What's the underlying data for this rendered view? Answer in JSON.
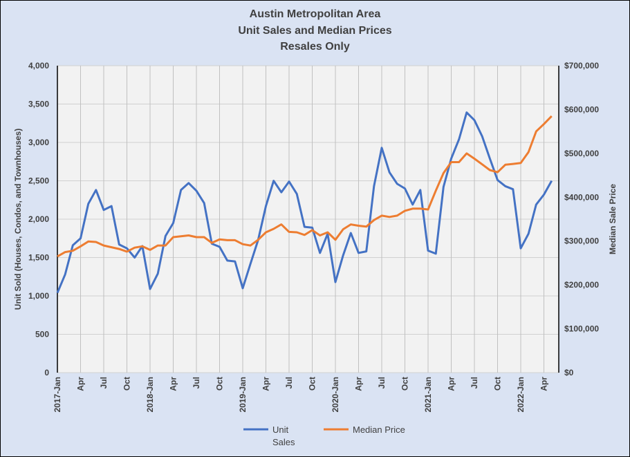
{
  "chart_data": {
    "type": "line",
    "title": [
      "Austin Metropolitan Area",
      "Unit Sales and Median Prices",
      "Resales Only"
    ],
    "ylabel_left": "Unit Sold (Houses, Condos, and Townhouses)",
    "ylabel_right": "Median Sale Price",
    "ylim_left": [
      0,
      4000
    ],
    "yticks_left": [
      "0",
      "500",
      "1,000",
      "1,500",
      "2,000",
      "2,500",
      "3,000",
      "3,500",
      "4,000"
    ],
    "ylim_right": [
      0,
      700000
    ],
    "yticks_right": [
      "$0",
      "$100,000",
      "$200,000",
      "$300,000",
      "$400,000",
      "$500,000",
      "$600,000",
      "$700,000"
    ],
    "x_start": "2017-Jan",
    "xtick_labels": [
      "2017-Jan",
      "Apr",
      "Jul",
      "Oct",
      "2018-Jan",
      "Apr",
      "Jul",
      "Oct",
      "2019-Jan",
      "Apr",
      "Jul",
      "Oct",
      "2020-Jan",
      "Apr",
      "Jul",
      "Oct",
      "2021-Jan",
      "Apr",
      "Jul",
      "Oct",
      "2022-Jan",
      "Apr"
    ],
    "grid": true,
    "legend_position": "bottom",
    "series": [
      {
        "name": "Unit Sales",
        "axis": "left",
        "color": "#4472c4",
        "values": [
          1040,
          1280,
          1660,
          1750,
          2200,
          2380,
          2120,
          2170,
          1670,
          1620,
          1500,
          1650,
          1090,
          1290,
          1780,
          1950,
          2380,
          2470,
          2370,
          2210,
          1680,
          1640,
          1460,
          1450,
          1100,
          1420,
          1730,
          2170,
          2500,
          2350,
          2490,
          2330,
          1900,
          1890,
          1560,
          1810,
          1180,
          1530,
          1820,
          1560,
          1580,
          2430,
          2930,
          2610,
          2460,
          2400,
          2190,
          2380,
          1590,
          1550,
          2420,
          2790,
          3040,
          3390,
          3290,
          3080,
          2790,
          2510,
          2430,
          2390,
          1620,
          1810,
          2190,
          2320,
          2500
        ]
      },
      {
        "name": "Median Price",
        "axis": "right",
        "color": "#ed7d31",
        "values": [
          265000,
          275000,
          278000,
          288000,
          299000,
          298000,
          290000,
          286000,
          282000,
          276000,
          285000,
          288000,
          280000,
          290000,
          290000,
          309000,
          311000,
          313000,
          309000,
          309000,
          296000,
          304000,
          302000,
          302000,
          293000,
          290000,
          303000,
          320000,
          328000,
          338000,
          321000,
          320000,
          314000,
          325000,
          313000,
          320000,
          303000,
          327000,
          338000,
          335000,
          333000,
          348000,
          358000,
          355000,
          358000,
          369000,
          374000,
          374000,
          372000,
          415000,
          455000,
          480000,
          480000,
          500000,
          488000,
          475000,
          462000,
          457000,
          474000,
          476000,
          478000,
          503000,
          550000,
          567000,
          585000
        ]
      }
    ]
  },
  "legend": {
    "unit_line1": "Unit",
    "unit_line2": "Sales",
    "price": "Median Price"
  }
}
